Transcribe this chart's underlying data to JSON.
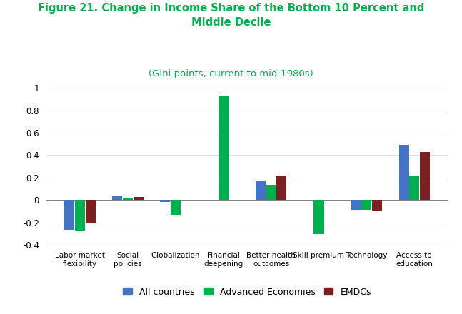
{
  "title_line1": "Figure 21. Change in Income Share of the Bottom 10 Percent and\nMiddle Decile",
  "subtitle": "(Gini points, current to mid-1980s)",
  "title_color": "#00B050",
  "subtitle_color": "#00B050",
  "categories": [
    "Labor market\nflexibility",
    "Social\npolicies",
    "Globalization",
    "Financial\ndeepening",
    "Better health\noutcomes",
    "Skill premium",
    "Technology",
    "Access to\neducation"
  ],
  "series": {
    "All countries": [
      -0.265,
      0.035,
      -0.02,
      0.0,
      0.175,
      0.0,
      -0.09,
      0.495
    ],
    "Advanced Economies": [
      -0.27,
      0.02,
      -0.13,
      0.93,
      0.135,
      -0.305,
      -0.085,
      0.215
    ],
    "EMDCs": [
      -0.205,
      0.03,
      0.0,
      0.0,
      0.21,
      0.0,
      -0.1,
      0.43
    ]
  },
  "colors": {
    "All countries": "#4472C4",
    "Advanced Economies": "#00B050",
    "EMDCs": "#7B2020"
  },
  "ylim": [
    -0.4,
    1.0
  ],
  "yticks": [
    -0.4,
    -0.2,
    0.0,
    0.2,
    0.4,
    0.6,
    0.8,
    1.0
  ],
  "legend_labels": [
    "All countries",
    "Advanced Economies",
    "EMDCs"
  ],
  "bar_width": 0.22,
  "figsize": [
    6.47,
    4.4
  ],
  "dpi": 100
}
